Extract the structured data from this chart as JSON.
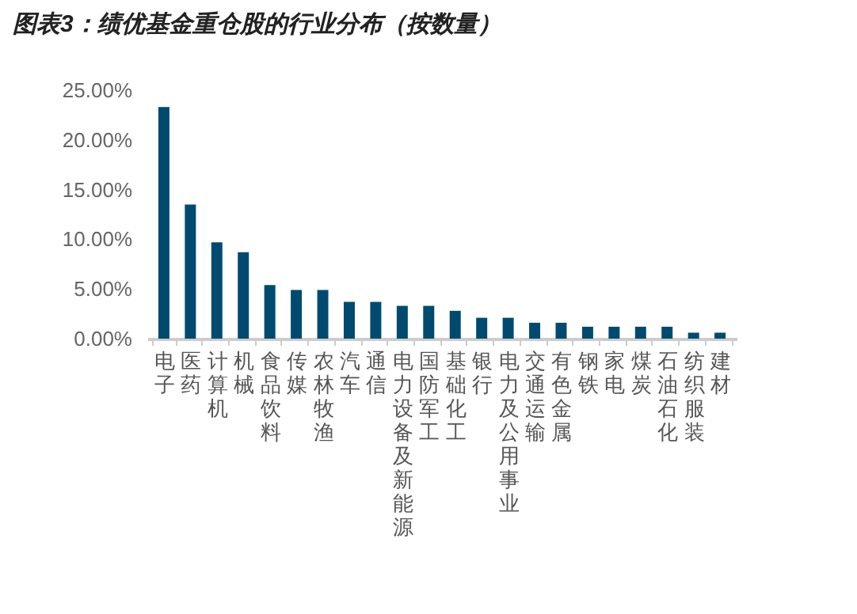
{
  "chart_data": {
    "type": "bar",
    "title": "图表3：绩优基金重仓股的行业分布（按数量）",
    "categories": [
      "电子",
      "医药",
      "计算机",
      "机械",
      "食品饮料",
      "传媒",
      "农林牧渔",
      "汽车",
      "通信",
      "电力设备及新能源",
      "国防军工",
      "基础化工",
      "银行",
      "电力及公用事业",
      "交通运输",
      "有色金属",
      "钢铁",
      "家电",
      "煤炭",
      "石油石化",
      "纺织服装",
      "建材"
    ],
    "values": [
      23.3,
      13.5,
      9.7,
      8.7,
      5.4,
      4.9,
      4.9,
      3.7,
      3.7,
      3.3,
      3.3,
      2.8,
      2.1,
      2.1,
      1.6,
      1.6,
      1.2,
      1.2,
      1.2,
      1.2,
      0.6,
      0.6
    ],
    "color": "#004a70",
    "ylim": [
      0,
      25
    ],
    "yticks": [
      {
        "value": 0,
        "label": "0.00%"
      },
      {
        "value": 5,
        "label": "5.00%"
      },
      {
        "value": 10,
        "label": "10.00%"
      },
      {
        "value": 15,
        "label": "15.00%"
      },
      {
        "value": 20,
        "label": "20.00%"
      },
      {
        "value": 25,
        "label": "25.00%"
      }
    ],
    "grid": false
  }
}
